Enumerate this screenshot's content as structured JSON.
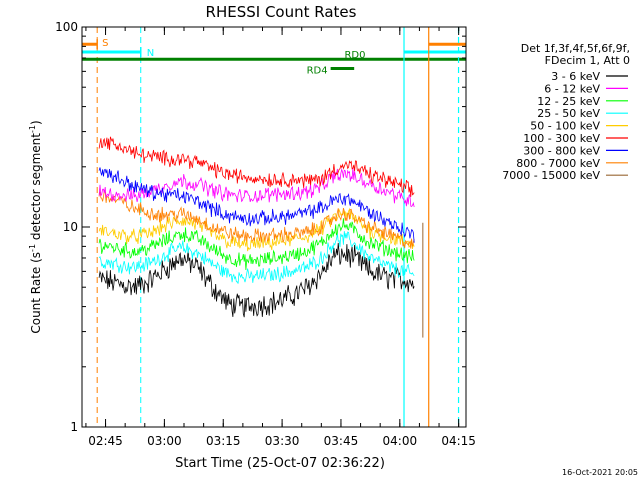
{
  "chart_data": {
    "type": "line",
    "title": "RHESSI Count Rates",
    "xlabel": "Start Time (25-Oct-07 02:36:22)",
    "ylabel_pre": "Count Rate (s",
    "ylabel_sup": "-1",
    "ylabel_mid": " detector segment",
    "ylabel_sup2": "-1",
    "ylabel_post": ")",
    "y_scale": "log",
    "ylim": [
      1,
      100
    ],
    "xlim_minutes": [
      2.63,
      100.5
    ],
    "x_ticks": [
      {
        "label": "02:45",
        "minutes": 8.63
      },
      {
        "label": "03:00",
        "minutes": 23.63
      },
      {
        "label": "03:15",
        "minutes": 38.63
      },
      {
        "label": "03:30",
        "minutes": 53.63
      },
      {
        "label": "03:45",
        "minutes": 68.63
      },
      {
        "label": "04:00",
        "minutes": 83.63
      },
      {
        "label": "04:15",
        "minutes": 98.63
      }
    ],
    "y_ticks": [
      {
        "label": "1",
        "value": 1
      },
      {
        "label": "10",
        "value": 10
      },
      {
        "label": "100",
        "value": 100
      }
    ],
    "legend_header": [
      "Det 1f,3f,4f,5f,6f,9f,",
      "FDecim 1, Att 0"
    ],
    "legend_placement": "right",
    "footer_date": "16-Oct-2021 20:05",
    "data_start_minutes": 7.0,
    "data_end_minutes": 87.5,
    "series": [
      {
        "name": "3 - 6 keV",
        "color": "#000000",
        "x": [
          7,
          12,
          16,
          20,
          24,
          28,
          32,
          36,
          40,
          44,
          48,
          52,
          56,
          60,
          64,
          67,
          70,
          73,
          76,
          80,
          83,
          86,
          87.5
        ],
        "values": [
          5.5,
          5.2,
          5.0,
          5.4,
          6.2,
          7.0,
          6.3,
          5.0,
          4.1,
          4.0,
          4.1,
          4.2,
          4.5,
          5.0,
          6.0,
          7.2,
          7.3,
          6.8,
          6.0,
          5.6,
          5.5,
          5.4,
          5.2
        ]
      },
      {
        "name": "6 - 12 keV",
        "color": "#ff00ff",
        "x": [
          7,
          12,
          16,
          20,
          24,
          28,
          32,
          36,
          40,
          44,
          48,
          52,
          56,
          60,
          64,
          67,
          70,
          73,
          76,
          80,
          83,
          86,
          87.5
        ],
        "values": [
          15.0,
          14.5,
          14.3,
          15.0,
          16.2,
          17.0,
          16.5,
          15.3,
          14.5,
          14.2,
          14.4,
          14.6,
          14.8,
          15.0,
          16.0,
          18.0,
          18.5,
          17.5,
          16.5,
          15.2,
          14.3,
          13.6,
          13.2
        ]
      },
      {
        "name": "12 - 25 keV",
        "color": "#00ff00",
        "x": [
          7,
          12,
          16,
          20,
          24,
          28,
          32,
          36,
          40,
          44,
          48,
          52,
          56,
          60,
          64,
          67,
          70,
          73,
          76,
          80,
          83,
          86,
          87.5
        ],
        "values": [
          8.2,
          7.8,
          7.5,
          7.9,
          8.6,
          9.3,
          8.8,
          7.8,
          7.0,
          6.7,
          6.8,
          7.0,
          7.2,
          7.6,
          8.4,
          9.8,
          10.2,
          9.3,
          8.3,
          7.8,
          7.4,
          7.1,
          7.0
        ]
      },
      {
        "name": "25 - 50 keV",
        "color": "#00ffff",
        "x": [
          7,
          12,
          16,
          20,
          24,
          28,
          32,
          36,
          40,
          44,
          48,
          52,
          56,
          60,
          64,
          67,
          70,
          73,
          76,
          80,
          83,
          86,
          87.5
        ],
        "values": [
          6.8,
          6.5,
          6.3,
          6.6,
          7.3,
          7.9,
          7.4,
          6.5,
          5.8,
          5.6,
          5.7,
          5.8,
          6.0,
          6.3,
          7.1,
          8.5,
          8.8,
          8.0,
          7.0,
          6.4,
          6.1,
          5.9,
          5.7
        ]
      },
      {
        "name": "50 - 100 keV",
        "color": "#ffcc00",
        "x": [
          7,
          12,
          16,
          20,
          24,
          28,
          32,
          36,
          40,
          44,
          48,
          52,
          56,
          60,
          64,
          67,
          70,
          73,
          76,
          80,
          83,
          86,
          87.5
        ],
        "values": [
          9.6,
          9.2,
          8.9,
          9.3,
          10.2,
          10.8,
          10.3,
          9.2,
          8.4,
          8.1,
          8.2,
          8.4,
          8.6,
          9.0,
          9.9,
          11.2,
          11.7,
          10.6,
          9.6,
          9.0,
          8.6,
          8.3,
          8.1
        ]
      },
      {
        "name": "100 - 300 keV",
        "color": "#ff0000",
        "x": [
          7,
          12,
          16,
          20,
          24,
          28,
          32,
          36,
          40,
          44,
          48,
          52,
          56,
          60,
          64,
          67,
          70,
          73,
          76,
          80,
          83,
          86,
          87.5
        ],
        "values": [
          27.0,
          25.5,
          23.5,
          22.5,
          22.0,
          22.0,
          21.2,
          19.5,
          18.3,
          17.8,
          17.5,
          17.2,
          17.3,
          17.0,
          17.5,
          19.5,
          20.5,
          19.5,
          18.2,
          17.2,
          16.3,
          15.3,
          14.8
        ]
      },
      {
        "name": "300 - 800 keV",
        "color": "#0000ff",
        "x": [
          7,
          12,
          16,
          20,
          24,
          28,
          32,
          36,
          40,
          44,
          48,
          52,
          56,
          60,
          64,
          67,
          70,
          73,
          76,
          80,
          83,
          86,
          87.5
        ],
        "values": [
          19.5,
          17.5,
          16.0,
          15.0,
          14.5,
          14.3,
          13.5,
          12.3,
          11.4,
          11.0,
          11.0,
          11.2,
          11.4,
          11.8,
          12.5,
          13.7,
          14.0,
          13.0,
          11.8,
          10.8,
          10.0,
          9.3,
          9.0
        ]
      },
      {
        "name": "800 - 7000 keV",
        "color": "#ff8000",
        "x": [
          7,
          12,
          16,
          20,
          24,
          28,
          32,
          36,
          40,
          44,
          48,
          52,
          56,
          60,
          64,
          67,
          70,
          73,
          76,
          80,
          83,
          86,
          87.5
        ],
        "values": [
          14.5,
          13.5,
          12.4,
          11.8,
          11.5,
          11.6,
          11.0,
          10.0,
          9.3,
          9.0,
          9.0,
          9.1,
          9.2,
          9.4,
          10.1,
          11.3,
          11.7,
          10.9,
          10.0,
          9.3,
          8.8,
          8.3,
          8.0
        ]
      },
      {
        "name": "7000 - 15000 keV",
        "color": "#996633",
        "x": [],
        "values": []
      }
    ],
    "annotations": [
      {
        "label": "S",
        "color": "#ff8000",
        "type": "span",
        "start_minutes": 2.63,
        "end_minutes": 6.5,
        "y_value": 82,
        "dashed_line_minutes": 6.5
      },
      {
        "label": "N",
        "color": "#00ffff",
        "type": "span",
        "start_minutes": 2.63,
        "end_minutes": 17.6,
        "y_value": 75,
        "dashed_line_minutes": 17.6
      },
      {
        "label": "RD0",
        "color": "#008000",
        "type": "span",
        "start_minutes": 2.63,
        "end_minutes": 100.5,
        "y_value": 69
      },
      {
        "label": "RD4",
        "color": "#008000",
        "type": "span",
        "start_minutes": 66.0,
        "end_minutes": 72.0,
        "y_value": 62
      }
    ],
    "right_markers": [
      {
        "kind": "cyan_solid_line",
        "color": "#00ffff",
        "minutes": 84.7
      },
      {
        "kind": "cyan_bar",
        "color": "#00ffff",
        "start_minutes": 84.7,
        "end_minutes": 100.5,
        "y_value": 75
      },
      {
        "kind": "orange_solid_line",
        "color": "#ff8000",
        "minutes": 91.0
      },
      {
        "kind": "orange_bar",
        "color": "#ff8000",
        "start_minutes": 91.0,
        "end_minutes": 100.5,
        "y_value": 82
      },
      {
        "kind": "cyan_dashed_line",
        "color": "#00ffff",
        "minutes": 98.6
      },
      {
        "kind": "end_spike",
        "color": "#996633",
        "minutes": 89.5,
        "from_value": 2.8,
        "to_value": 10.5
      }
    ]
  }
}
